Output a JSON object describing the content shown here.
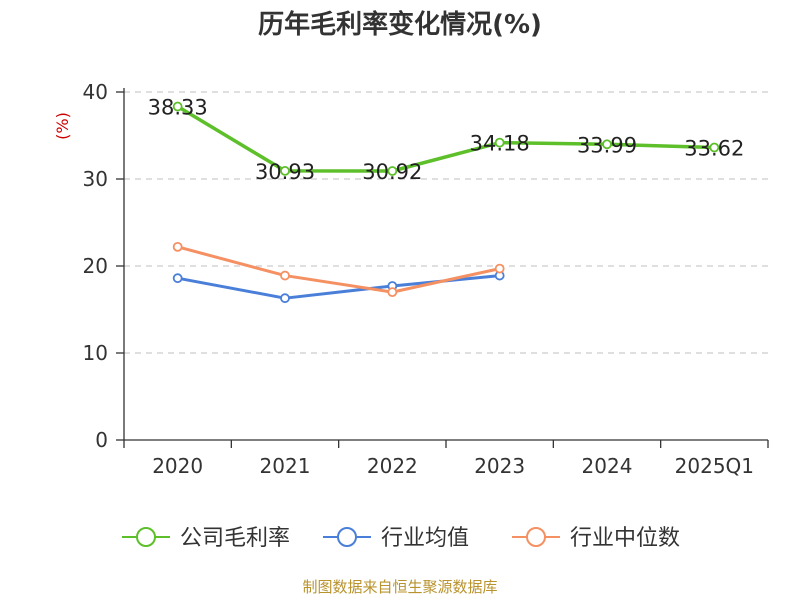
{
  "chart_data": {
    "type": "line",
    "title": "历年毛利率变化情况(%)",
    "ylabel": "(%)",
    "categories": [
      "2020",
      "2021",
      "2022",
      "2023",
      "2024",
      "2025Q1"
    ],
    "ylim": [
      0,
      40
    ],
    "yticks": [
      0,
      10,
      20,
      30,
      40
    ],
    "grid": true,
    "legend_position": "bottom",
    "series": [
      {
        "name": "公司毛利率",
        "color": "#5dbf2a",
        "values": [
          38.33,
          30.93,
          30.92,
          34.18,
          33.99,
          33.62
        ],
        "labels": [
          "38.33",
          "30.93",
          "30.92",
          "34.18",
          "33.99",
          "33.62"
        ]
      },
      {
        "name": "行业均值",
        "color": "#4a7fd9",
        "values": [
          18.6,
          16.3,
          17.7,
          18.9,
          null,
          null
        ]
      },
      {
        "name": "行业中位数",
        "color": "#f59062",
        "values": [
          22.2,
          18.9,
          17.0,
          19.7,
          null,
          null
        ]
      }
    ]
  },
  "footer": {
    "source": "制图数据来自恒生聚源数据库"
  }
}
